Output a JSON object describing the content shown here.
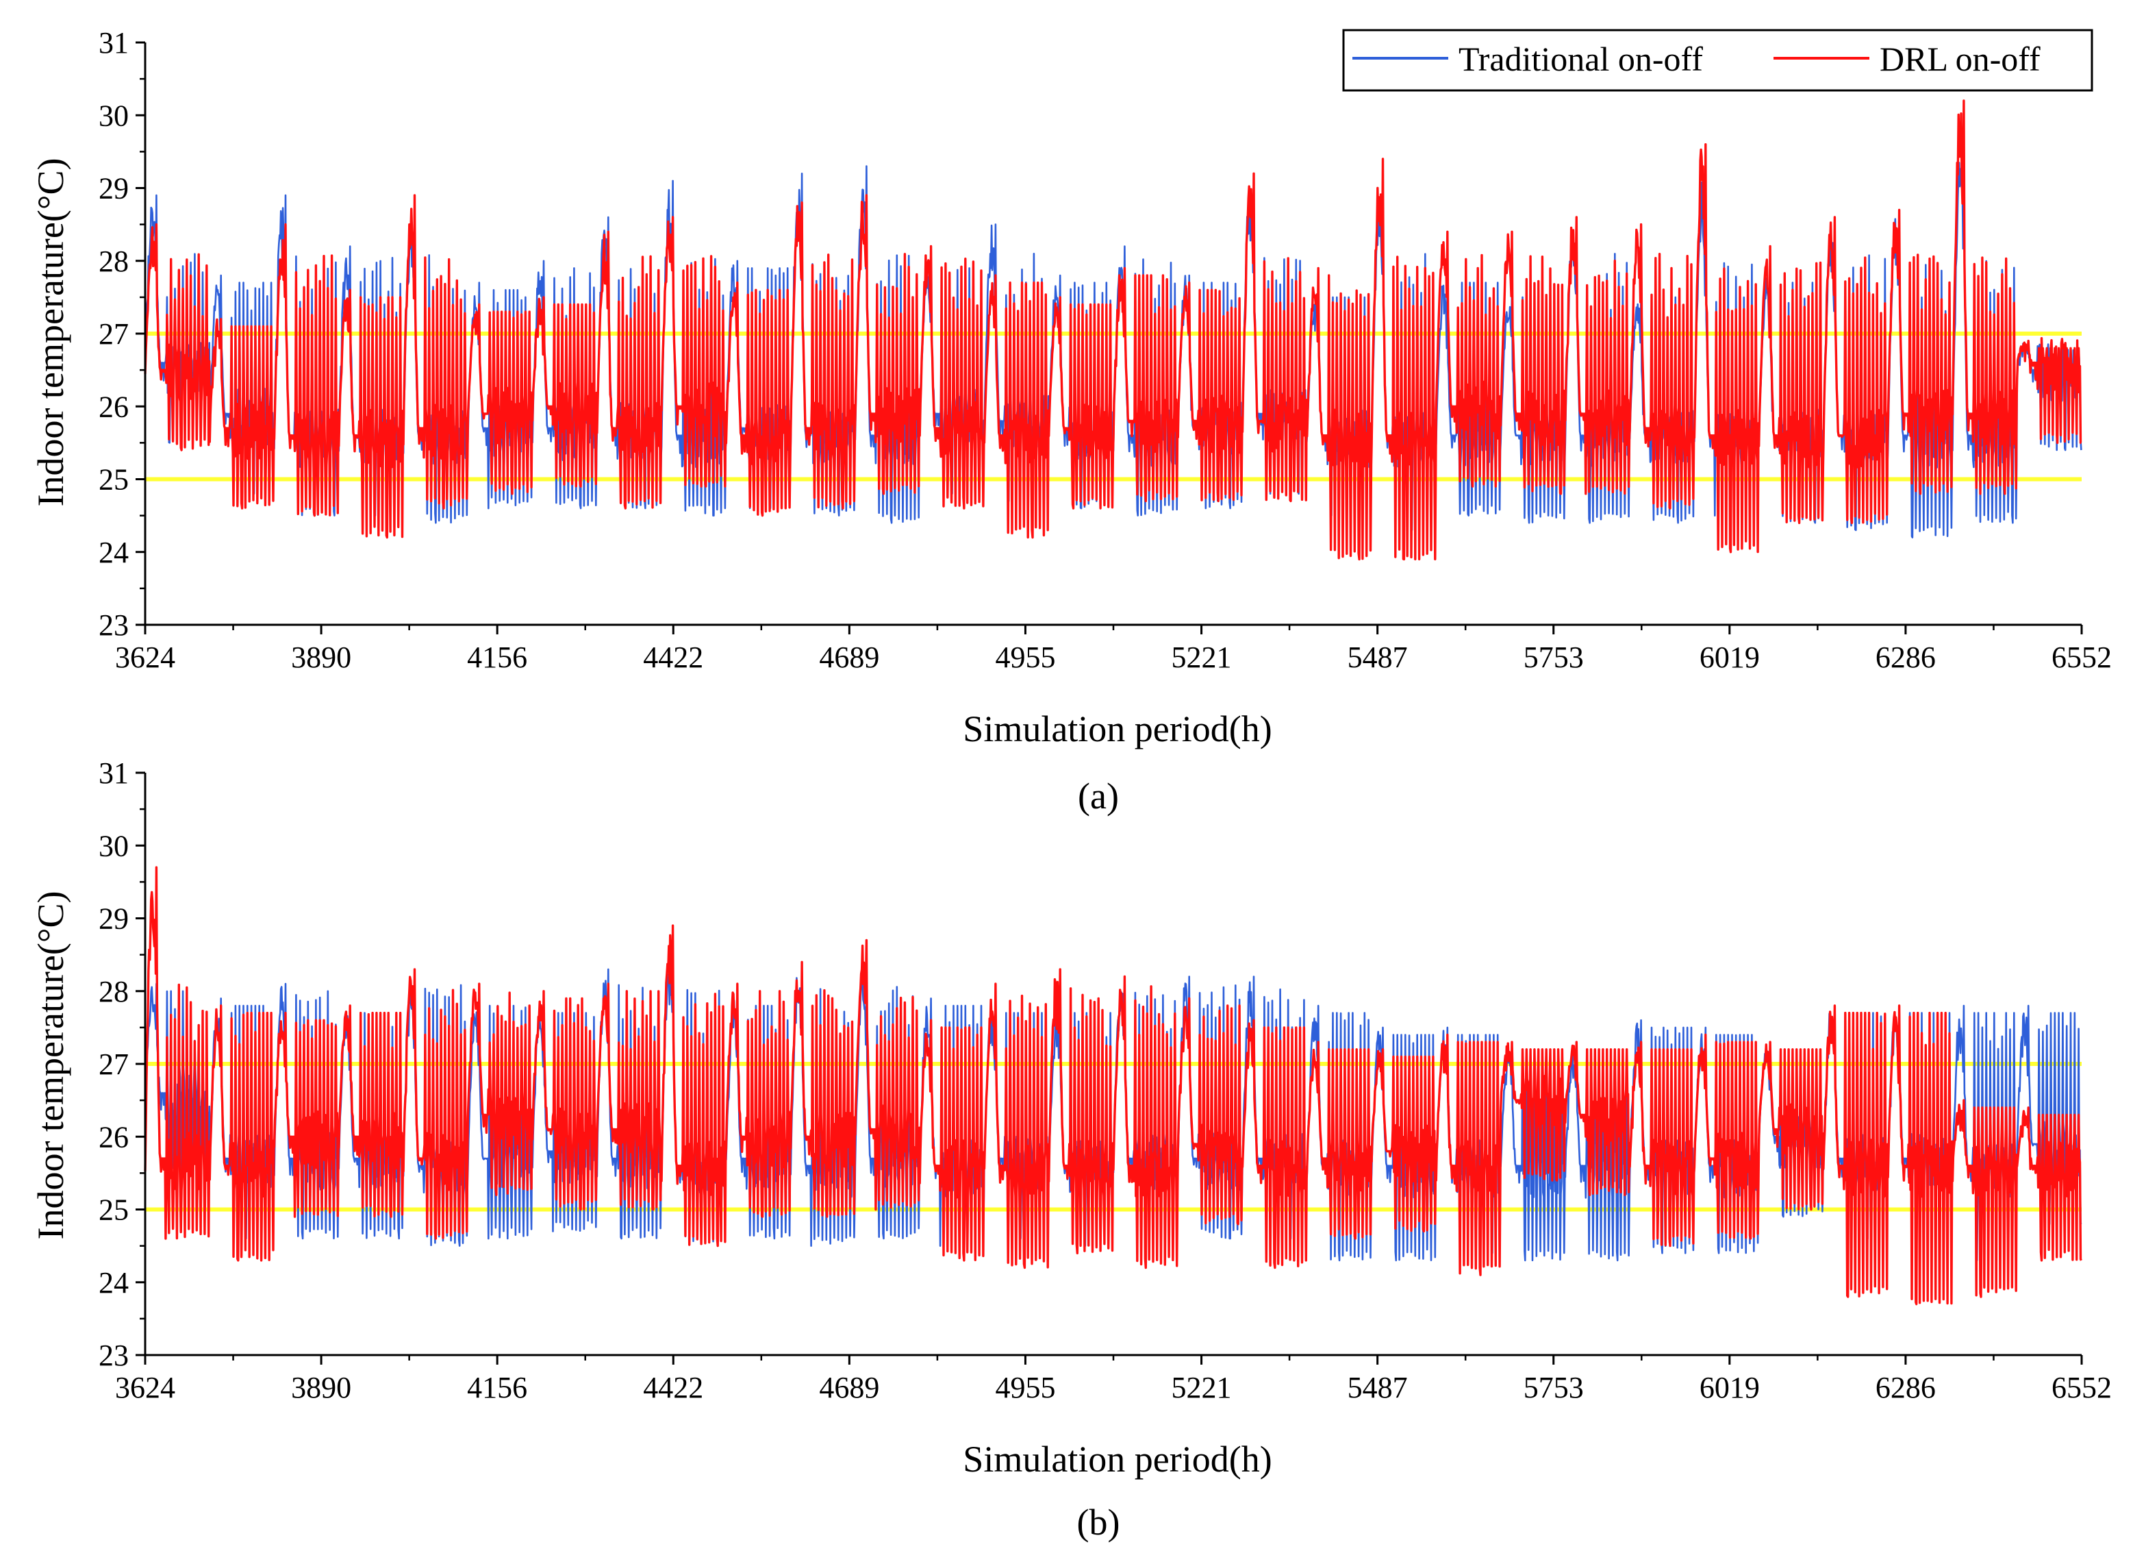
{
  "colors": {
    "traditional": "#2e5fd9",
    "drl": "#ff1010",
    "comfort_band": "#ffff33",
    "axis": "#000000",
    "legend_border": "#000000"
  },
  "legend": {
    "traditional_label": "Traditional on-off",
    "drl_label": "DRL on-off"
  },
  "chart_data": [
    {
      "type": "line",
      "panel": "(a)",
      "xlabel": "Simulation period(h)",
      "ylabel": "Indoor temperature(°C)",
      "xlim": [
        3624,
        6552
      ],
      "ylim": [
        23,
        31
      ],
      "xticks": [
        "3624",
        "3890",
        "4156",
        "4422",
        "4689",
        "4955",
        "5221",
        "5487",
        "5753",
        "6019",
        "6286",
        "6552"
      ],
      "yticks": [
        "23",
        "24",
        "25",
        "26",
        "27",
        "28",
        "29",
        "30",
        "31"
      ],
      "reference_lines": [
        25,
        27
      ],
      "series": [
        {
          "name": "Traditional on-off",
          "day_peaks": [
            28.9,
            27.8,
            28.9,
            28.2,
            28.6,
            27.7,
            28.0,
            28.6,
            29.1,
            28.0,
            29.2,
            29.3,
            28.0,
            28.5,
            27.8,
            28.2,
            27.8,
            29.2,
            27.6,
            29.0,
            27.8,
            27.6,
            28.6,
            27.6,
            29.1,
            27.8,
            28.6,
            28.7,
            29.6,
            26.9
          ],
          "day_floors": [
            25.5,
            24.8,
            24.5,
            24.5,
            24.4,
            24.6,
            24.6,
            24.6,
            24.5,
            24.6,
            24.5,
            24.4,
            24.8,
            24.7,
            24.6,
            24.5,
            24.6,
            24.8,
            24.5,
            24.3,
            24.5,
            24.4,
            24.4,
            24.4,
            24.5,
            24.4,
            24.3,
            24.2,
            24.4,
            25.4
          ],
          "end_value": 25.4
        },
        {
          "name": "DRL on-off",
          "day_peaks": [
            28.5,
            27.2,
            28.5,
            27.6,
            28.9,
            27.4,
            27.5,
            28.4,
            28.6,
            27.7,
            28.8,
            28.9,
            28.2,
            27.8,
            27.5,
            27.9,
            27.7,
            29.2,
            27.9,
            29.4,
            28.4,
            28.4,
            28.6,
            28.5,
            29.6,
            28.2,
            28.6,
            28.7,
            30.2,
            26.9
          ],
          "day_floors": [
            25.4,
            24.6,
            24.5,
            24.2,
            24.6,
            24.8,
            24.9,
            24.6,
            24.9,
            24.5,
            24.6,
            24.8,
            24.6,
            24.2,
            24.6,
            24.7,
            24.7,
            24.7,
            23.9,
            23.9,
            24.9,
            24.8,
            24.8,
            24.6,
            24.0,
            24.4,
            24.4,
            24.8,
            24.8,
            25.5
          ],
          "end_value": 25.5
        }
      ]
    },
    {
      "type": "line",
      "panel": "(b)",
      "xlabel": "Simulation period(h)",
      "ylabel": "Indoor temperature(°C)",
      "xlim": [
        3624,
        6552
      ],
      "ylim": [
        23,
        31
      ],
      "xticks": [
        "3624",
        "3890",
        "4156",
        "4422",
        "4689",
        "4955",
        "5221",
        "5487",
        "5753",
        "6019",
        "6286",
        "6552"
      ],
      "yticks": [
        "23",
        "24",
        "25",
        "26",
        "27",
        "28",
        "29",
        "30",
        "31"
      ],
      "reference_lines": [
        25,
        27
      ],
      "series": [
        {
          "name": "Traditional on-off",
          "day_peaks": [
            28.1,
            27.9,
            28.1,
            27.8,
            28.3,
            27.9,
            27.8,
            28.3,
            28.6,
            27.9,
            28.3,
            28.4,
            27.9,
            27.8,
            27.8,
            28.2,
            28.2,
            28.2,
            27.8,
            27.5,
            27.5,
            27.3,
            27.2,
            27.6,
            27.5,
            27.3,
            27.8,
            27.8,
            27.8,
            27.8
          ],
          "day_floors": [
            25.5,
            24.6,
            24.6,
            24.6,
            24.5,
            24.6,
            24.7,
            24.6,
            24.5,
            24.6,
            24.5,
            24.6,
            24.5,
            24.6,
            24.5,
            24.6,
            24.6,
            24.6,
            24.3,
            24.3,
            24.4,
            24.3,
            24.3,
            24.4,
            24.4,
            24.9,
            24.6,
            24.6,
            24.3,
            24.8
          ],
          "end_value": 24.8
        },
        {
          "name": "DRL on-off",
          "day_peaks": [
            29.7,
            27.8,
            27.7,
            27.8,
            28.3,
            28.1,
            28.0,
            28.1,
            28.9,
            28.1,
            28.4,
            28.7,
            27.6,
            28.1,
            28.3,
            28.2,
            27.9,
            27.6,
            27.3,
            27.2,
            27.4,
            27.3,
            27.3,
            27.3,
            27.4,
            27.3,
            27.8,
            27.8,
            26.5,
            26.4
          ],
          "day_floors": [
            24.6,
            24.3,
            24.9,
            24.9,
            24.6,
            25.2,
            25.0,
            25.0,
            24.5,
            24.9,
            24.9,
            25.0,
            24.3,
            24.2,
            24.4,
            24.2,
            24.8,
            24.2,
            24.6,
            24.7,
            24.1,
            25.4,
            25.2,
            24.5,
            24.6,
            25.0,
            23.8,
            23.7,
            23.8,
            24.3
          ],
          "end_value": 24.3
        }
      ]
    }
  ]
}
